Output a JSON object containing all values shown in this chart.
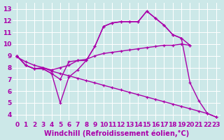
{
  "background_color": "#cce8e8",
  "line_color": "#aa00aa",
  "grid_color": "#ffffff",
  "xlabel": "Windchill (Refroidissement éolien,°C)",
  "xlim": [
    -0.5,
    23.5
  ],
  "ylim": [
    3.5,
    13.5
  ],
  "xticks": [
    0,
    1,
    2,
    3,
    4,
    5,
    6,
    7,
    8,
    9,
    10,
    11,
    12,
    13,
    14,
    15,
    16,
    17,
    18,
    19,
    20,
    21,
    22,
    23
  ],
  "yticks": [
    4,
    5,
    6,
    7,
    8,
    9,
    10,
    11,
    12,
    13
  ],
  "lines": [
    {
      "x": [
        0,
        1,
        2,
        3,
        4,
        5,
        6,
        7,
        8,
        9,
        10,
        11,
        12,
        13,
        14,
        15,
        16,
        17,
        18,
        19,
        20
      ],
      "y": [
        9.0,
        8.2,
        7.9,
        7.9,
        7.5,
        7.0,
        8.5,
        8.6,
        8.6,
        9.8,
        11.5,
        11.8,
        11.9,
        11.9,
        11.9,
        12.8,
        12.2,
        11.6,
        10.8,
        10.5,
        9.9
      ]
    },
    {
      "x": [
        0,
        1,
        2,
        3,
        4,
        5,
        6,
        7,
        8,
        9,
        10,
        11,
        12,
        13,
        14,
        15,
        16,
        17,
        18,
        19,
        20,
        21,
        22,
        23
      ],
      "y": [
        9.0,
        8.2,
        7.9,
        7.9,
        7.5,
        5.0,
        7.2,
        7.8,
        8.6,
        9.8,
        11.5,
        11.8,
        11.9,
        11.9,
        11.9,
        12.8,
        12.2,
        11.6,
        10.8,
        10.5,
        6.7,
        5.2,
        4.1,
        3.8
      ]
    },
    {
      "x": [
        0,
        1,
        2,
        3,
        4,
        5,
        6,
        7,
        8,
        9,
        10,
        11,
        12,
        13,
        14,
        15,
        16,
        17,
        18,
        19,
        20,
        21,
        22,
        23
      ],
      "y": [
        8.9,
        8.5,
        8.2,
        8.0,
        7.7,
        7.5,
        7.3,
        7.1,
        6.9,
        6.7,
        6.5,
        6.3,
        6.1,
        5.9,
        5.7,
        5.5,
        5.3,
        5.1,
        4.9,
        4.7,
        4.5,
        4.3,
        4.1,
        3.8
      ]
    },
    {
      "x": [
        0,
        1,
        2,
        3,
        4,
        5,
        6,
        7,
        8,
        9,
        10,
        11,
        12,
        13,
        14,
        15,
        16,
        17,
        18,
        19,
        20
      ],
      "y": [
        9.0,
        8.2,
        7.9,
        8.0,
        7.8,
        8.0,
        8.2,
        8.6,
        8.7,
        9.0,
        9.2,
        9.3,
        9.4,
        9.5,
        9.6,
        9.7,
        9.8,
        9.9,
        9.9,
        10.0,
        9.9
      ]
    }
  ],
  "marker": "+",
  "markersize": 3.5,
  "linewidth": 1.0,
  "fontsize_label": 7,
  "fontsize_tick": 6.5
}
